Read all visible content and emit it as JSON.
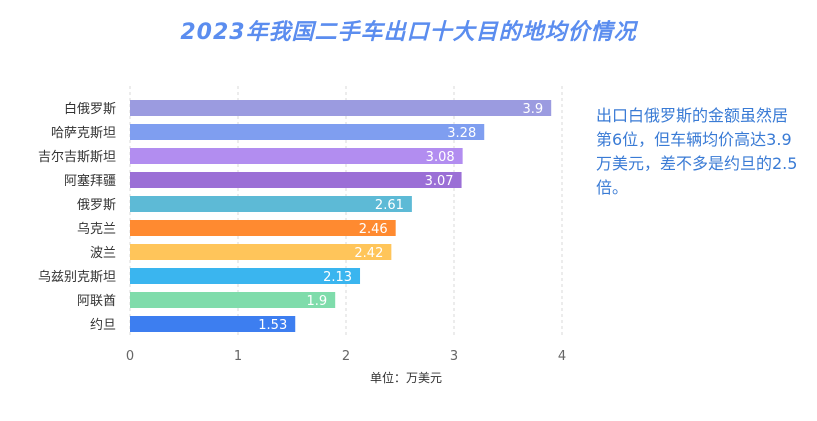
{
  "chart_data": {
    "type": "bar",
    "orientation": "horizontal",
    "title": "2023年我国二手车出口十大目的地均价情况",
    "categories": [
      "白俄罗斯",
      "哈萨克斯坦",
      "吉尔吉斯斯坦",
      "阿塞拜疆",
      "俄罗斯",
      "乌克兰",
      "波兰",
      "乌兹别克斯坦",
      "阿联酋",
      "约旦"
    ],
    "values": [
      3.9,
      3.28,
      3.08,
      3.07,
      2.61,
      2.46,
      2.42,
      2.13,
      1.9,
      1.53
    ],
    "value_labels": [
      "3.9",
      "3.28",
      "3.08",
      "3.07",
      "2.61",
      "2.46",
      "2.42",
      "2.13",
      "1.9",
      "1.53"
    ],
    "colors": [
      "#9b9be0",
      "#7f9ef0",
      "#b28df0",
      "#9b6fd6",
      "#5dbad6",
      "#ff8a30",
      "#ffc55a",
      "#3ab5ef",
      "#7fdcab",
      "#3d7ef0"
    ],
    "xlim": [
      0,
      4
    ],
    "xticks": [
      "0",
      "1",
      "2",
      "3",
      "4"
    ],
    "xlabel": "单位：万美元",
    "grid": "vertical-dashed",
    "legend": "none"
  },
  "annotation": {
    "text": "出口白俄罗斯的金额虽然居第6位，但车辆均价高达3.9万美元，差不多是约旦的2.5倍。"
  }
}
